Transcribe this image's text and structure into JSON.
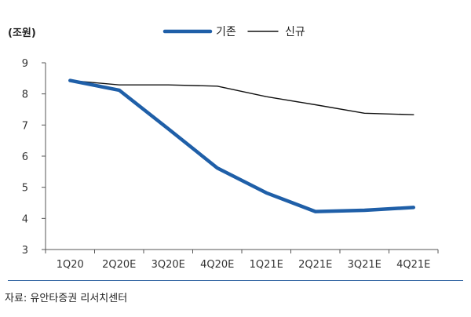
{
  "chart_data": {
    "type": "line",
    "title": "",
    "unit_label": "(조원)",
    "categories": [
      "1Q20",
      "2Q20E",
      "3Q20E",
      "4Q20E",
      "1Q21E",
      "2Q21E",
      "3Q21E",
      "4Q21E"
    ],
    "ylim": [
      3,
      9
    ],
    "yticks": [
      "3",
      "4",
      "5",
      "6",
      "7",
      "8",
      "9"
    ],
    "grid": false,
    "legend_position": "top",
    "series": [
      {
        "name": "기존",
        "color": "#1f5fa8",
        "line_weight": "thick",
        "values": [
          8.43,
          8.12,
          6.88,
          5.62,
          4.82,
          4.22,
          4.26,
          4.35
        ]
      },
      {
        "name": "신규",
        "color": "#111111",
        "line_weight": "thin",
        "values": [
          8.43,
          8.29,
          8.29,
          8.25,
          7.91,
          7.65,
          7.38,
          7.33
        ]
      }
    ]
  },
  "source": "자료: 유안타증권 리서치센터"
}
